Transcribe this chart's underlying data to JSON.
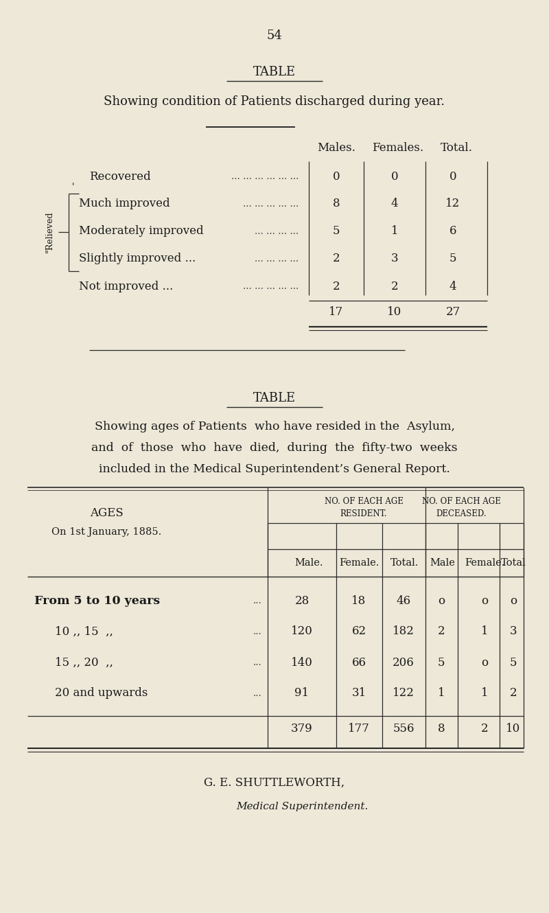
{
  "bg_color": "#ede8d8",
  "text_color": "#1a1a1a",
  "page_number": "54",
  "table1_title": "TABLE",
  "table1_subtitle": "Showing condition of Patients discharged during year.",
  "table1_col_headers": [
    "Males.",
    "Females.",
    "Total."
  ],
  "table1_rows": [
    {
      "label": "Recovered",
      "dots": "... ... ... ... ... ...",
      "males": "0",
      "females": "0",
      "total": "0"
    },
    {
      "label": "Much improved",
      "dots": "... ... ... ... ...",
      "males": "8",
      "females": "4",
      "total": "12"
    },
    {
      "label": "Moderately improved",
      "dots": "... ... ... ...",
      "males": "5",
      "females": "1",
      "total": "6"
    },
    {
      "label": "Slightly improved ...",
      "dots": "... ... ... ...",
      "males": "2",
      "females": "3",
      "total": "5"
    },
    {
      "label": "Not improved ...",
      "dots": "... ... ... ... ...",
      "males": "2",
      "females": "2",
      "total": "4"
    }
  ],
  "table1_totals": [
    "17",
    "10",
    "27"
  ],
  "table2_title": "TABLE",
  "table2_subtitle_line1": "Showing ages of Patients  who have resided in the  Asylum,",
  "table2_subtitle_line2": "and  of  those  who  have  died,  during  the  fifty-two  weeks",
  "table2_subtitle_line3": "included in the Medical Superintendent’s General Report.",
  "table2_sub_headers": [
    "Male.",
    "Female.",
    "Total.",
    "Male",
    "Female.",
    "Total"
  ],
  "table2_rows": [
    {
      "age": "From 5 to 10 years",
      "dots": "...",
      "r_male": "28",
      "r_female": "18",
      "r_total": "46",
      "d_male": "o",
      "d_female": "o",
      "d_total": "o"
    },
    {
      "age": "10 ,, 15  ,,",
      "dots": "...",
      "r_male": "120",
      "r_female": "62",
      "r_total": "182",
      "d_male": "2",
      "d_female": "1",
      "d_total": "3"
    },
    {
      "age": "15 ,, 20  ,,",
      "dots": "...",
      "r_male": "140",
      "r_female": "66",
      "r_total": "206",
      "d_male": "5",
      "d_female": "o",
      "d_total": "5"
    },
    {
      "age": "20 and upwards",
      "dots": "...",
      "r_male": "91",
      "r_female": "31",
      "r_total": "122",
      "d_male": "1",
      "d_female": "1",
      "d_total": "2"
    }
  ],
  "table2_totals": [
    "379",
    "177",
    "556",
    "8",
    "2",
    "10"
  ],
  "signature_line1": "G. E. SHUTTLEWORTH,",
  "signature_line2": "Medical Superintendent."
}
